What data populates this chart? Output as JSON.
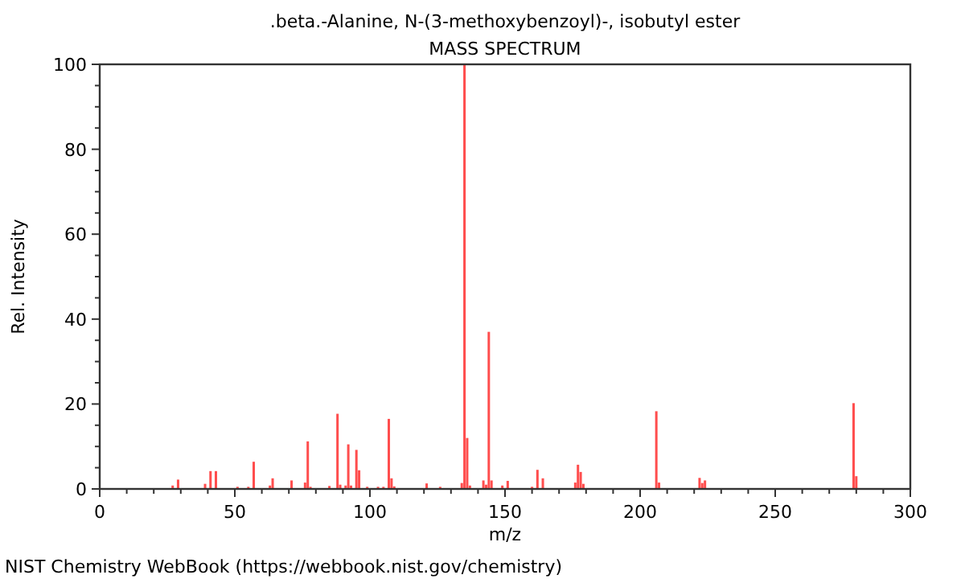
{
  "chart_data": {
    "type": "bar",
    "title": ".beta.-Alanine, N-(3-methoxybenzoyl)-, isobutyl ester",
    "subtitle": "MASS SPECTRUM",
    "xlabel": "m/z",
    "ylabel": "Rel. Intensity",
    "annotations": [
      "NIST Chemistry WebBook (https://webbook.nist.gov/chemistry)"
    ],
    "x": [
      27,
      29,
      39,
      41,
      43,
      51,
      55,
      57,
      63,
      64,
      71,
      76,
      77,
      78,
      85,
      88,
      89,
      91,
      92,
      93,
      95,
      96,
      99,
      103,
      105,
      107,
      108,
      109,
      121,
      126,
      134,
      135,
      136,
      137,
      142,
      143,
      144,
      145,
      149,
      151,
      160,
      162,
      164,
      176,
      177,
      178,
      179,
      206,
      207,
      222,
      223,
      224,
      279,
      280
    ],
    "series": [
      {
        "color": "#ff4d4d",
        "values": [
          0.8,
          2.2,
          1.2,
          4.2,
          4.2,
          0.5,
          0.5,
          6.4,
          0.8,
          2.5,
          2,
          1.5,
          11.2,
          0.5,
          0.7,
          17.7,
          1,
          0.8,
          10.5,
          0.8,
          9.2,
          4.4,
          0.5,
          0.5,
          0.5,
          16.5,
          2.5,
          0.6,
          1.3,
          0.5,
          1.4,
          100,
          12,
          0.8,
          2,
          1,
          37,
          2,
          0.8,
          1.9,
          0.5,
          4.5,
          2.5,
          1.5,
          5.7,
          4,
          1.2,
          18.3,
          1.5,
          2.6,
          1.4,
          2,
          20.2,
          3
        ]
      }
    ],
    "xlim": [
      0,
      300
    ],
    "ylim": [
      0,
      100
    ],
    "xticks": [
      0,
      {
        "value": 10,
        "label": null
      },
      {
        "value": 20,
        "label": null
      },
      {
        "value": 30,
        "label": null
      },
      {
        "value": 40,
        "label": null
      },
      50,
      {
        "value": 60,
        "label": null
      },
      {
        "value": 70,
        "label": null
      },
      {
        "value": 80,
        "label": null
      },
      {
        "value": 90,
        "label": null
      },
      100,
      {
        "value": 110,
        "label": null
      },
      {
        "value": 120,
        "label": null
      },
      {
        "value": 130,
        "label": null
      },
      {
        "value": 140,
        "label": null
      },
      150,
      {
        "value": 160,
        "label": null
      },
      {
        "value": 170,
        "label": null
      },
      {
        "value": 180,
        "label": null
      },
      {
        "value": 190,
        "label": null
      },
      200,
      {
        "value": 210,
        "label": null
      },
      {
        "value": 220,
        "label": null
      },
      {
        "value": 230,
        "label": null
      },
      {
        "value": 240,
        "label": null
      },
      250,
      {
        "value": 260,
        "label": null
      },
      {
        "value": 270,
        "label": null
      },
      {
        "value": 280,
        "label": null
      },
      {
        "value": 290,
        "label": null
      },
      300
    ],
    "yticks": [
      0,
      {
        "value": 5,
        "label": null
      },
      {
        "value": 10,
        "label": null
      },
      {
        "value": 15,
        "label": null
      },
      20,
      {
        "value": 25,
        "label": null
      },
      {
        "value": 30,
        "label": null
      },
      {
        "value": 35,
        "label": null
      },
      40,
      {
        "value": 45,
        "label": null
      },
      {
        "value": 50,
        "label": null
      },
      {
        "value": 55,
        "label": null
      },
      60,
      {
        "value": 65,
        "label": null
      },
      {
        "value": 70,
        "label": null
      },
      {
        "value": 75,
        "label": null
      },
      80,
      {
        "value": 85,
        "label": null
      },
      {
        "value": 90,
        "label": null
      },
      {
        "value": 95,
        "label": null
      },
      100
    ],
    "grid": false
  }
}
